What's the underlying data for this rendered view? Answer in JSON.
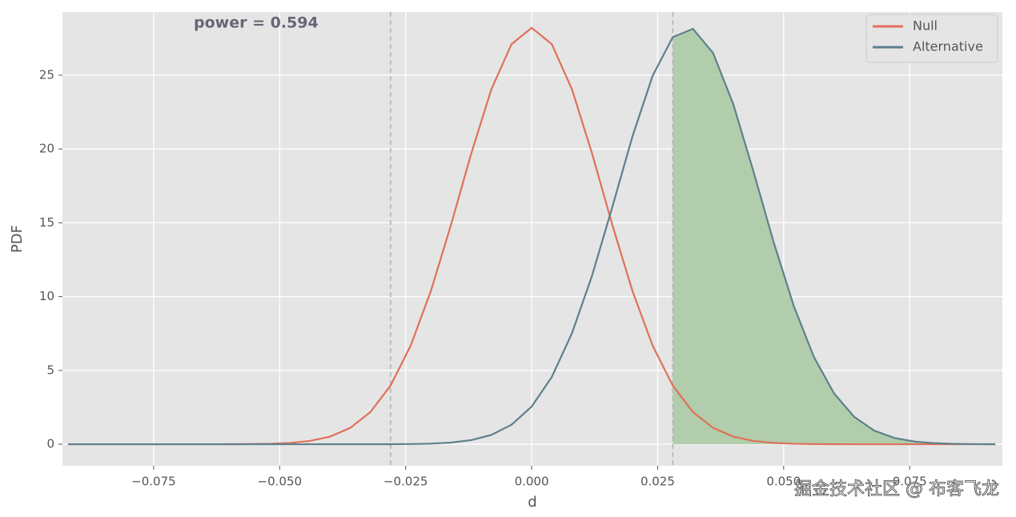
{
  "chart_data": {
    "type": "line",
    "annotation": "power = 0.594",
    "xlabel": "d",
    "ylabel": "PDF",
    "watermark": "掘金技术社区 @ 布客飞龙",
    "x": [
      -0.092,
      -0.088,
      -0.084,
      -0.08,
      -0.076,
      -0.072,
      -0.068,
      -0.064,
      -0.06,
      -0.056,
      -0.052,
      -0.048,
      -0.044,
      -0.04,
      -0.036,
      -0.032,
      -0.028,
      -0.024,
      -0.02,
      -0.016,
      -0.012,
      -0.008,
      -0.004,
      0,
      0.004,
      0.008,
      0.012,
      0.016,
      0.02,
      0.024,
      0.028,
      0.032,
      0.036,
      0.04,
      0.044,
      0.048,
      0.052,
      0.056,
      0.06,
      0.064,
      0.068,
      0.072,
      0.076,
      0.08,
      0.084,
      0.088,
      0.092
    ],
    "series": [
      {
        "name": "Null",
        "color": "#e0705a",
        "values": [
          0,
          0,
          0,
          0,
          0,
          0,
          0,
          0,
          0.003,
          0.011,
          0.033,
          0.089,
          0.223,
          0.517,
          1.105,
          2.18,
          3.97,
          6.68,
          10.38,
          14.87,
          19.68,
          24.04,
          27.1,
          28.21,
          27.1,
          24.04,
          19.68,
          14.87,
          10.38,
          6.68,
          3.97,
          2.18,
          1.105,
          0.517,
          0.223,
          0.089,
          0.033,
          0.011,
          0.003,
          0,
          0,
          0,
          0,
          0,
          0,
          0,
          0
        ]
      },
      {
        "name": "Alternative",
        "color": "#5e808c",
        "values": [
          0,
          0,
          0,
          0,
          0,
          0,
          0,
          0,
          0,
          0,
          0,
          0,
          0,
          0,
          0,
          0.001,
          0.005,
          0.015,
          0.042,
          0.113,
          0.277,
          0.629,
          1.32,
          2.55,
          4.56,
          7.52,
          11.44,
          16.07,
          20.85,
          24.96,
          27.58,
          28.14,
          26.5,
          23.04,
          18.49,
          13.7,
          9.37,
          5.91,
          3.44,
          1.85,
          0.92,
          0.42,
          0.179,
          0.07,
          0.025,
          0.008,
          0.003
        ]
      }
    ],
    "shade_from": 0.028,
    "shade_color": "#a8c9a2",
    "vlines": [
      -0.028,
      0.028
    ],
    "xlim": [
      -0.0931,
      0.0934
    ],
    "ylim": [
      -1.46,
      29.28
    ],
    "xticks": [
      {
        "value": -0.075,
        "label": "−0.075"
      },
      {
        "value": -0.05,
        "label": "−0.050"
      },
      {
        "value": -0.025,
        "label": "−0.025"
      },
      {
        "value": 0,
        "label": "0.000"
      },
      {
        "value": 0.025,
        "label": "0.025"
      },
      {
        "value": 0.05,
        "label": "0.050"
      },
      {
        "value": 0.075,
        "label": "0.075"
      }
    ],
    "yticks": [
      0,
      5,
      10,
      15,
      20,
      25
    ],
    "grid": true,
    "legend": "upper right"
  }
}
